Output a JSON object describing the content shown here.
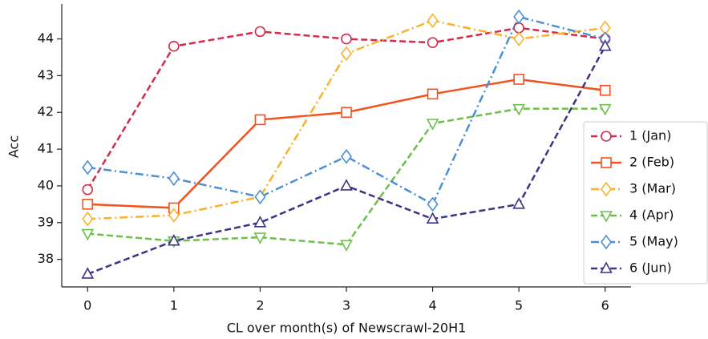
{
  "chart_data": {
    "type": "line",
    "xlabel": "CL over month(s) of Newscrawl-20H1",
    "ylabel": "Acc",
    "x": [
      0,
      1,
      2,
      3,
      4,
      5,
      6
    ],
    "xlim": [
      -0.3,
      6.3
    ],
    "xticks": [
      0,
      1,
      2,
      3,
      4,
      5,
      6
    ],
    "ylim": [
      37.25,
      44.95
    ],
    "yticks": [
      38,
      39,
      40,
      41,
      42,
      43,
      44
    ],
    "legend": "right",
    "series": [
      {
        "name": "1 (Jan)",
        "color": "#d42a4e",
        "marker": "circle",
        "dash": "dashed",
        "values": [
          39.9,
          43.8,
          44.2,
          44.0,
          43.9,
          44.3,
          44.0
        ]
      },
      {
        "name": "2 (Feb)",
        "color": "#f4511e",
        "marker": "square",
        "dash": "solid",
        "values": [
          39.5,
          39.4,
          41.8,
          42.0,
          42.5,
          42.9,
          42.6
        ]
      },
      {
        "name": "3 (Mar)",
        "color": "#f8b32c",
        "marker": "diamond",
        "dash": "dashdot",
        "values": [
          39.1,
          39.2,
          39.7,
          43.6,
          44.5,
          44.0,
          44.3
        ]
      },
      {
        "name": "4 (Apr)",
        "color": "#6dbf4b",
        "marker": "triangle-down",
        "dash": "dashed",
        "values": [
          38.7,
          38.5,
          38.6,
          38.4,
          41.7,
          42.1,
          42.1
        ]
      },
      {
        "name": "5 (May)",
        "color": "#4b8fd6",
        "marker": "diamond",
        "dash": "dashdot",
        "values": [
          40.5,
          40.2,
          39.7,
          40.8,
          39.5,
          44.6,
          44.0
        ]
      },
      {
        "name": "6 (Jun)",
        "color": "#3c3486",
        "marker": "triangle-up",
        "dash": "dashed",
        "values": [
          37.6,
          38.5,
          39.0,
          40.0,
          39.1,
          39.5,
          43.8
        ]
      }
    ]
  }
}
